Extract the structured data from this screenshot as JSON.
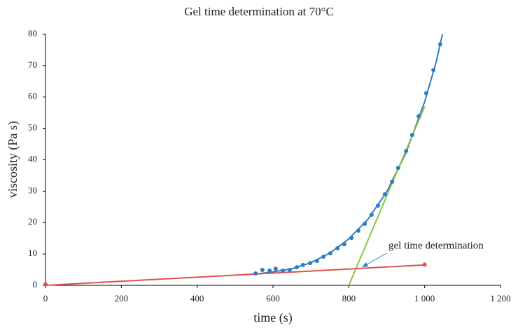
{
  "chart_data": {
    "type": "scatter",
    "title": "Gel time determination at 70°C",
    "x_label": "time (s)",
    "y_label": "viscosity (Pa s)",
    "xlim": [
      0,
      1200
    ],
    "ylim": [
      0,
      80
    ],
    "xticks": [
      0,
      200,
      400,
      600,
      800,
      {
        "value": 1000,
        "label": "1 000"
      },
      {
        "value": 1200,
        "label": "1 200"
      }
    ],
    "yticks": [
      0,
      10,
      20,
      30,
      40,
      50,
      60,
      70,
      80
    ],
    "annotation": "gel time determination",
    "series": [
      {
        "mode": "markers",
        "color": "#2e7dbf",
        "x": [
          554,
          572,
          591,
          607,
          626,
          644,
          663,
          679,
          698,
          716,
          733,
          751,
          770,
          788,
          807,
          825,
          842,
          860,
          877,
          895,
          914,
          930,
          951,
          967,
          984,
          1004,
          1023,
          1041
        ],
        "values": [
          3.8,
          4.9,
          4.7,
          5.3,
          4.7,
          4.9,
          5.8,
          6.5,
          7.1,
          7.8,
          9.1,
          10.2,
          11.8,
          13.1,
          15.1,
          17.4,
          19.6,
          22.5,
          25.4,
          29,
          33,
          37.4,
          42.8,
          47.9,
          53.9,
          61.2,
          68.6,
          76.8
        ]
      },
      {
        "mode": "line",
        "color": "#2e7dbf",
        "x": [
          550,
          600,
          650,
          700,
          750,
          800,
          850,
          900,
          950,
          1000,
          1030,
          1047
        ],
        "values": [
          3.5,
          4.3,
          5.3,
          7.2,
          10.3,
          14.8,
          21,
          29.8,
          42,
          58.5,
          71,
          80
        ]
      },
      {
        "mode": "line",
        "color": "#8cc540",
        "x": [
          800,
          1000
        ],
        "values": [
          0,
          57
        ]
      },
      {
        "mode": "line",
        "color": "#e05050",
        "x": [
          0,
          1000
        ],
        "values": [
          0,
          6.5
        ]
      },
      {
        "mode": "markers",
        "color": "#e05050",
        "x": [
          0,
          1000
        ],
        "values": [
          0.3,
          6.6
        ]
      }
    ]
  }
}
